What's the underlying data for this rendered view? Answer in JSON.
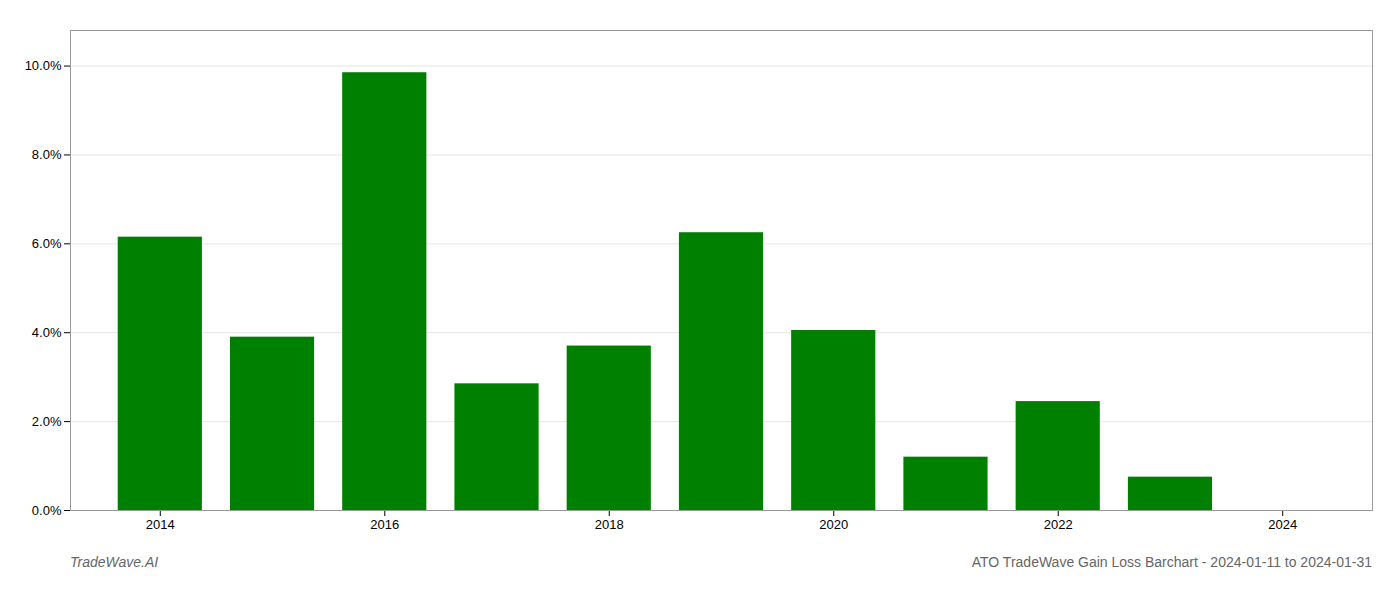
{
  "chart_data": {
    "type": "bar",
    "title": "ATO TradeWave Gain Loss Barchart - 2024-01-11 to 2024-01-31",
    "annotations": [
      "TradeWave.AI"
    ],
    "x": [
      2014,
      2015,
      2016,
      2017,
      2018,
      2019,
      2020,
      2021,
      2022,
      2023
    ],
    "values": [
      0.0615,
      0.039,
      0.0985,
      0.0285,
      0.037,
      0.0625,
      0.0405,
      0.012,
      0.0245,
      0.0075
    ],
    "color": "#008000",
    "xlim": [
      2013.2,
      2024.8
    ],
    "xticks": [
      2014,
      2016,
      2018,
      2020,
      2022,
      2024
    ],
    "ylim": [
      0,
      0.108
    ],
    "yticks": [
      {
        "value": 0.0,
        "label": "0.0%"
      },
      {
        "value": 0.02,
        "label": "2.0%"
      },
      {
        "value": 0.04,
        "label": "4.0%"
      },
      {
        "value": 0.06,
        "label": "6.0%"
      },
      {
        "value": 0.08,
        "label": "8.0%"
      },
      {
        "value": 0.1,
        "label": "10.0%"
      }
    ],
    "grid": true
  }
}
